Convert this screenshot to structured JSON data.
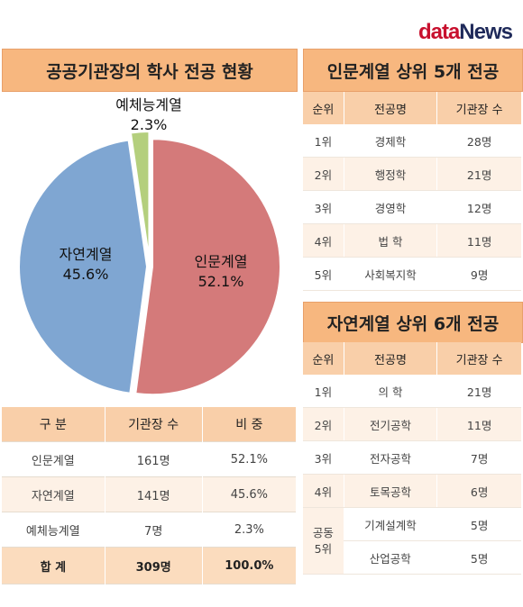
{
  "logo": {
    "part1": "data",
    "part2": "News"
  },
  "left_title": "공공기관장의 학사 전공 현황",
  "chart_data": {
    "type": "pie",
    "title": "공공기관장의 학사 전공 현황",
    "slices": [
      {
        "name": "인문계열",
        "value": 52.1,
        "label": "52.1%",
        "color": "#d47a7a"
      },
      {
        "name": "자연계열",
        "value": 45.6,
        "label": "45.6%",
        "color": "#7fa6d2"
      },
      {
        "name": "예체능계열",
        "value": 2.3,
        "label": "2.3%",
        "color": "#b4cf7d"
      }
    ]
  },
  "summary_table": {
    "headers": [
      "구 분",
      "기관장 수",
      "비 중"
    ],
    "rows": [
      [
        "인문계열",
        "161명",
        "52.1%"
      ],
      [
        "자연계열",
        "141명",
        "45.6%"
      ],
      [
        "예체능계열",
        "7명",
        "2.3%"
      ]
    ],
    "total": [
      "합 계",
      "309명",
      "100.0%"
    ]
  },
  "humanities": {
    "title": "인문계열 상위 5개 전공",
    "headers": [
      "순위",
      "전공명",
      "기관장 수"
    ],
    "rows": [
      [
        "1위",
        "경제학",
        "28명"
      ],
      [
        "2위",
        "행정학",
        "21명"
      ],
      [
        "3위",
        "경영학",
        "12명"
      ],
      [
        "4위",
        "법 학",
        "11명"
      ],
      [
        "5위",
        "사회복지학",
        "9명"
      ]
    ]
  },
  "science": {
    "title": "자연계열 상위 6개 전공",
    "headers": [
      "순위",
      "전공명",
      "기관장 수"
    ],
    "rows": [
      [
        "1위",
        "의 학",
        "21명"
      ],
      [
        "2위",
        "전기공학",
        "11명"
      ],
      [
        "3위",
        "전자공학",
        "7명"
      ],
      [
        "4위",
        "토목공학",
        "6명"
      ]
    ],
    "tie_rank_line1": "공동",
    "tie_rank_line2": "5위",
    "tie_rows": [
      [
        "기계설계학",
        "5명"
      ],
      [
        "산업공학",
        "5명"
      ]
    ]
  }
}
